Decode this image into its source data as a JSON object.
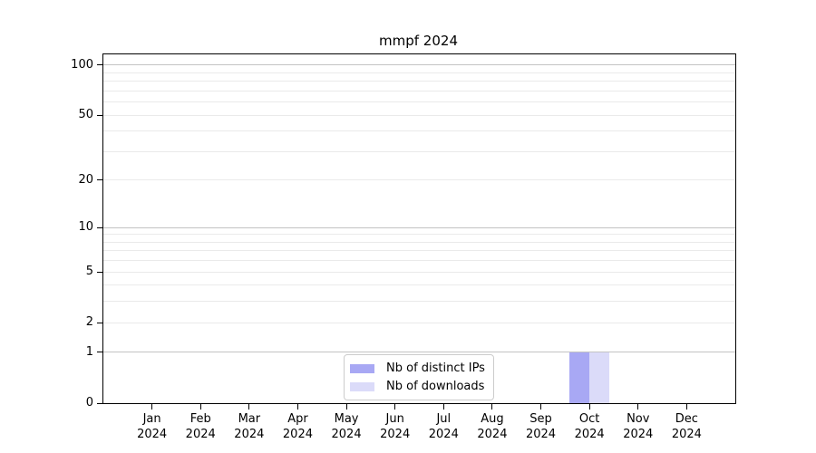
{
  "chart_data": {
    "type": "bar",
    "title": "mmpf 2024",
    "categories": [
      "Jan",
      "Feb",
      "Mar",
      "Apr",
      "May",
      "Jun",
      "Jul",
      "Aug",
      "Sep",
      "Oct",
      "Nov",
      "Dec"
    ],
    "category_year": "2024",
    "series": [
      {
        "name": "Nb of distinct IPs",
        "color": "#a8a8f4",
        "values": [
          0,
          0,
          0,
          0,
          0,
          0,
          0,
          0,
          0,
          1,
          0,
          0
        ]
      },
      {
        "name": "Nb of downloads",
        "color": "#dbdbf9",
        "values": [
          0,
          0,
          0,
          0,
          0,
          0,
          0,
          0,
          0,
          1,
          0,
          0
        ]
      }
    ],
    "xlabel": "",
    "ylabel": "",
    "yscale": "log1p",
    "ylim": [
      0,
      116
    ],
    "yticks": [
      0,
      1,
      2,
      5,
      10,
      20,
      50,
      100
    ],
    "ygrid_major": [
      1,
      10,
      100
    ],
    "ygrid_minor": [
      2,
      3,
      4,
      5,
      6,
      7,
      8,
      9,
      20,
      30,
      40,
      50,
      60,
      70,
      80,
      90
    ],
    "grid": "on",
    "legend_position": "lower center",
    "colors": {
      "grid_major": "#c3c3c3",
      "grid_minor": "#eaeaea",
      "spine": "#000000",
      "legend_border": "#cccccc"
    }
  }
}
